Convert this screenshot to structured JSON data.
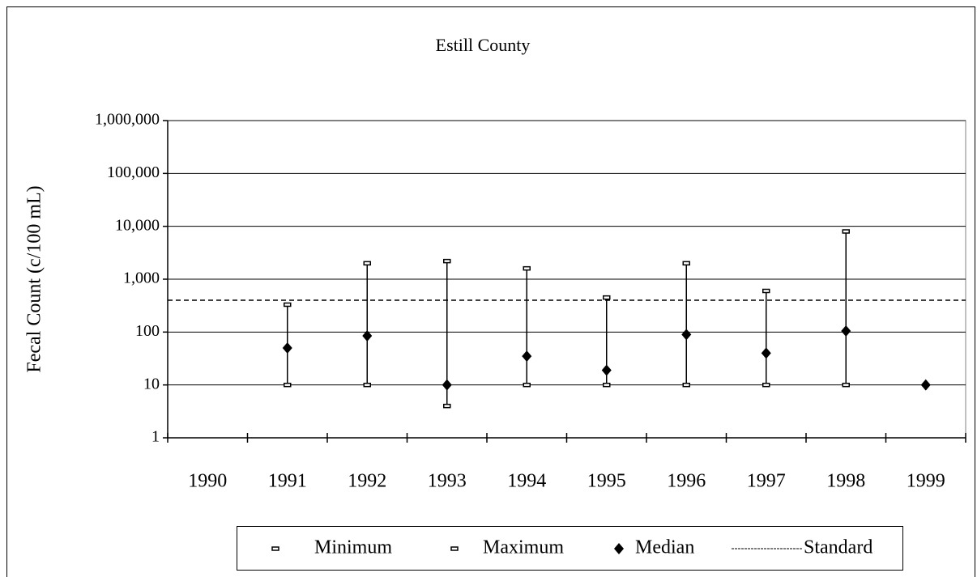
{
  "chart_data": {
    "type": "range",
    "title": "Estill County",
    "y_label": "Fecal Count (c/100 mL)",
    "categories": [
      "1990",
      "1991",
      "1992",
      "1993",
      "1994",
      "1995",
      "1996",
      "1997",
      "1998",
      "1999"
    ],
    "series": [
      {
        "name": "Minimum",
        "color": "#000000",
        "values": [
          null,
          10,
          10,
          4,
          10,
          10,
          10,
          10,
          10,
          null
        ]
      },
      {
        "name": "Maximum",
        "color": "#000000",
        "values": [
          null,
          330,
          2000,
          2200,
          1600,
          450,
          2000,
          600,
          8000,
          null
        ]
      },
      {
        "name": "Median",
        "color": "#000000",
        "values": [
          null,
          50,
          85,
          10,
          35,
          19,
          90,
          40,
          105,
          10
        ]
      }
    ],
    "standard": {
      "name": "Standard",
      "value": 400,
      "color": "#000000"
    },
    "log_scale": true,
    "ylim": [
      1,
      1000000
    ],
    "yticks": [
      1,
      10,
      100,
      {
        "value": 1000,
        "label": "1,000"
      },
      {
        "value": 10000,
        "label": "10,000"
      },
      {
        "value": 100000,
        "label": "100,000"
      },
      {
        "value": 1000000,
        "label": "1,000,000"
      }
    ],
    "grid": true,
    "legend": "bottom"
  }
}
